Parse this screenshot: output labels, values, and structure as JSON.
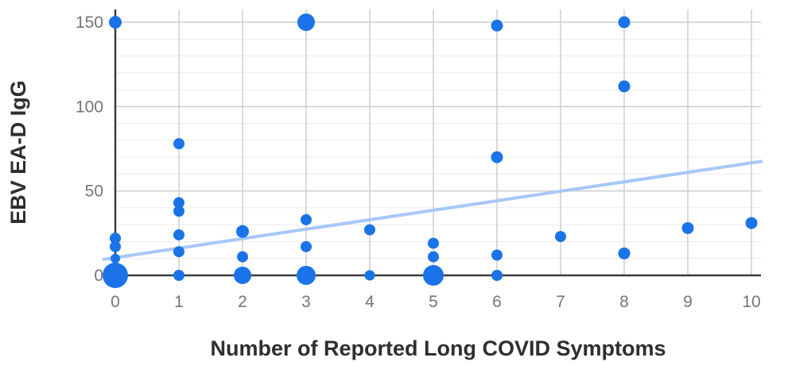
{
  "chart_data": {
    "type": "scatter",
    "title": "",
    "xlabel": "Number of Reported Long COVID Symptoms",
    "ylabel": "EBV EA-D IgG",
    "xlim": [
      0,
      10
    ],
    "ylim": [
      0,
      150
    ],
    "x_ticks": [
      0,
      1,
      2,
      3,
      4,
      5,
      6,
      7,
      8,
      9,
      10
    ],
    "y_ticks": [
      0,
      50,
      100,
      150
    ],
    "y_minor_step": 10,
    "grid": true,
    "legend_position": "none",
    "colors": {
      "background": "#ffffff",
      "grid_minor": "#ebebeb",
      "grid_major": "#cdcdcd",
      "axis": "#3c3c3c",
      "tick_label": "#757575",
      "axis_title": "#2e2e2e"
    },
    "series": [
      {
        "name": "EBV EA-D IgG",
        "color": "#1a73e8",
        "marker": "circle",
        "points": [
          {
            "x": 0,
            "y": 150,
            "r": 8
          },
          {
            "x": 0,
            "y": 22,
            "r": 7
          },
          {
            "x": 0,
            "y": 17,
            "r": 7
          },
          {
            "x": 0,
            "y": 10,
            "r": 6
          },
          {
            "x": 0,
            "y": 0,
            "r": 16
          },
          {
            "x": 1,
            "y": 78,
            "r": 7
          },
          {
            "x": 1,
            "y": 43,
            "r": 7
          },
          {
            "x": 1,
            "y": 38,
            "r": 7
          },
          {
            "x": 1,
            "y": 24,
            "r": 7
          },
          {
            "x": 1,
            "y": 14,
            "r": 7
          },
          {
            "x": 1,
            "y": 0,
            "r": 7
          },
          {
            "x": 2,
            "y": 26,
            "r": 8
          },
          {
            "x": 2,
            "y": 11,
            "r": 7
          },
          {
            "x": 2,
            "y": 0,
            "r": 11
          },
          {
            "x": 3,
            "y": 150,
            "r": 11
          },
          {
            "x": 3,
            "y": 33,
            "r": 7
          },
          {
            "x": 3,
            "y": 17,
            "r": 7
          },
          {
            "x": 3,
            "y": 0,
            "r": 12
          },
          {
            "x": 4,
            "y": 27,
            "r": 7
          },
          {
            "x": 4,
            "y": 0,
            "r": 6.5
          },
          {
            "x": 5,
            "y": 19,
            "r": 7
          },
          {
            "x": 5,
            "y": 11,
            "r": 7
          },
          {
            "x": 5,
            "y": 0,
            "r": 13
          },
          {
            "x": 6,
            "y": 148,
            "r": 7.5
          },
          {
            "x": 6,
            "y": 70,
            "r": 7.5
          },
          {
            "x": 6,
            "y": 12,
            "r": 7
          },
          {
            "x": 6,
            "y": 0,
            "r": 7
          },
          {
            "x": 7,
            "y": 23,
            "r": 7
          },
          {
            "x": 8,
            "y": 150,
            "r": 7.5
          },
          {
            "x": 8,
            "y": 112,
            "r": 7.5
          },
          {
            "x": 8,
            "y": 13,
            "r": 7.5
          },
          {
            "x": 9,
            "y": 28,
            "r": 7.5
          },
          {
            "x": 10,
            "y": 31,
            "r": 7.5
          }
        ]
      }
    ],
    "trendline": {
      "color": "#a7c7f9",
      "width": 4,
      "x1": -0.18,
      "y1": 9.5,
      "x2": 10.15,
      "y2": 67.5
    }
  }
}
